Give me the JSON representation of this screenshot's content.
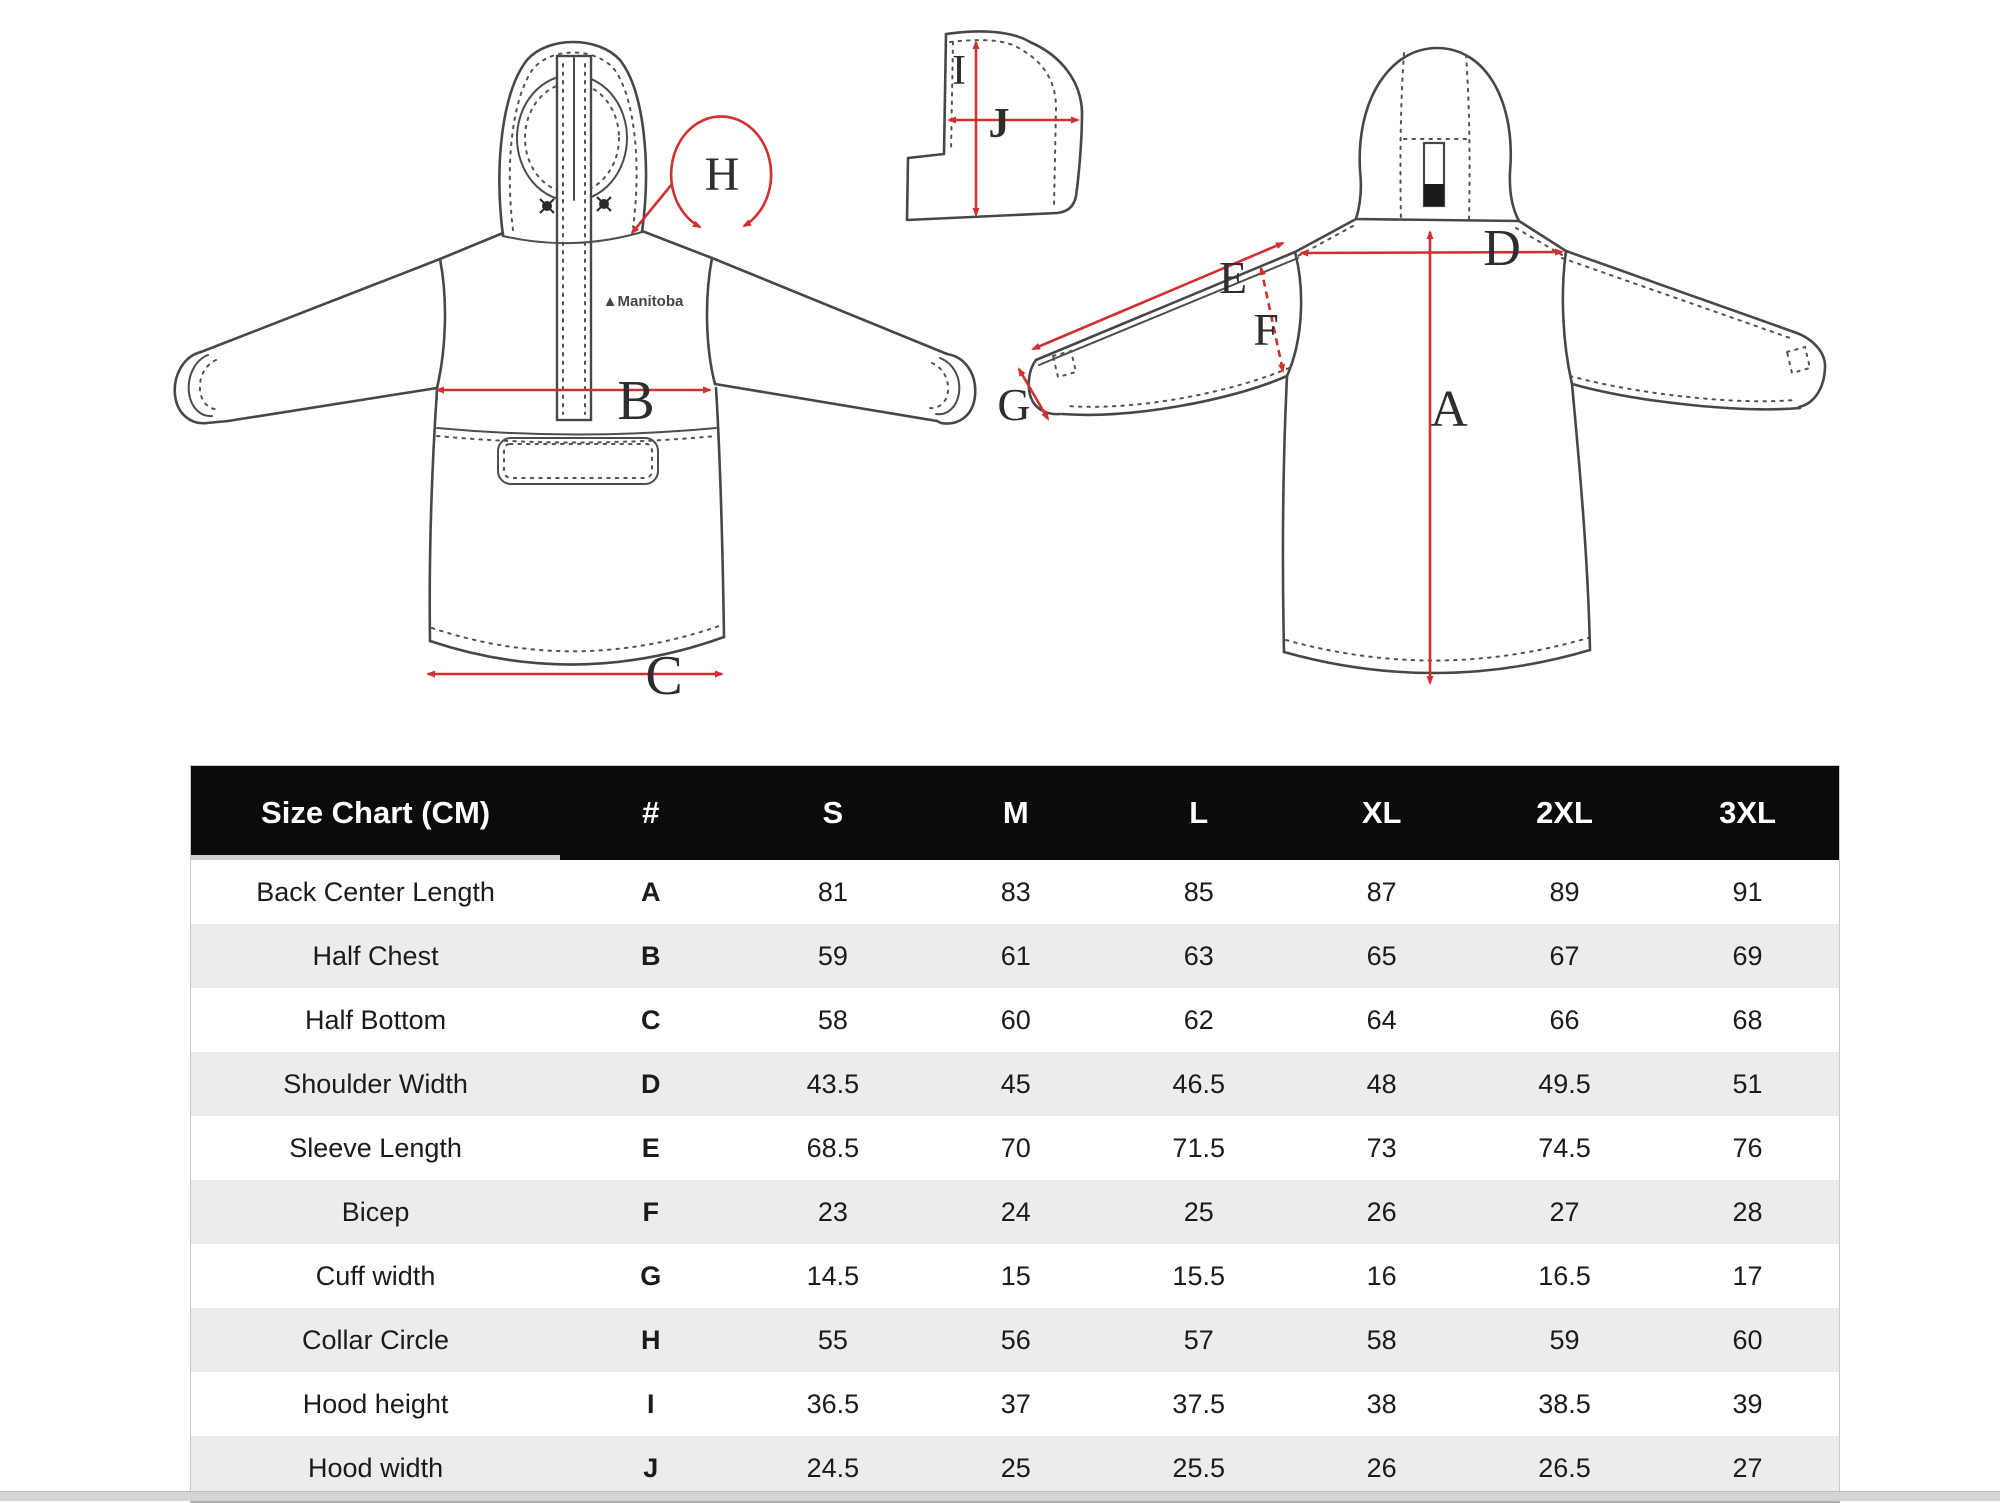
{
  "diagram": {
    "brand_logo": "▲Manitoba",
    "letters": {
      "A": "A",
      "B": "B",
      "C": "C",
      "D": "D",
      "E": "E",
      "F": "F",
      "G": "G",
      "H": "H",
      "I": "I",
      "J": "J"
    }
  },
  "table": {
    "title": "Size Chart (CM)",
    "ref_header": "#",
    "size_headers": [
      "S",
      "M",
      "L",
      "XL",
      "2XL",
      "3XL"
    ],
    "rows": [
      {
        "label": "Back Center Length",
        "ref": "A",
        "values": [
          "81",
          "83",
          "85",
          "87",
          "89",
          "91"
        ]
      },
      {
        "label": "Half Chest",
        "ref": "B",
        "values": [
          "59",
          "61",
          "63",
          "65",
          "67",
          "69"
        ]
      },
      {
        "label": "Half Bottom",
        "ref": "C",
        "values": [
          "58",
          "60",
          "62",
          "64",
          "66",
          "68"
        ]
      },
      {
        "label": "Shoulder Width",
        "ref": "D",
        "values": [
          "43.5",
          "45",
          "46.5",
          "48",
          "49.5",
          "51"
        ]
      },
      {
        "label": "Sleeve Length",
        "ref": "E",
        "values": [
          "68.5",
          "70",
          "71.5",
          "73",
          "74.5",
          "76"
        ]
      },
      {
        "label": "Bicep",
        "ref": "F",
        "values": [
          "23",
          "24",
          "25",
          "26",
          "27",
          "28"
        ]
      },
      {
        "label": "Cuff width",
        "ref": "G",
        "values": [
          "14.5",
          "15",
          "15.5",
          "16",
          "16.5",
          "17"
        ]
      },
      {
        "label": "Collar Circle",
        "ref": "H",
        "values": [
          "55",
          "56",
          "57",
          "58",
          "59",
          "60"
        ]
      },
      {
        "label": "Hood height",
        "ref": "I",
        "values": [
          "36.5",
          "37",
          "37.5",
          "38",
          "38.5",
          "39"
        ]
      },
      {
        "label": "Hood width",
        "ref": "J",
        "values": [
          "24.5",
          "25",
          "25.5",
          "26",
          "26.5",
          "27"
        ]
      }
    ]
  },
  "colors": {
    "accent_red": "#d03030",
    "line_gray": "#474747",
    "header_bg": "#0b0b0b",
    "row_alt": "#ececec"
  }
}
